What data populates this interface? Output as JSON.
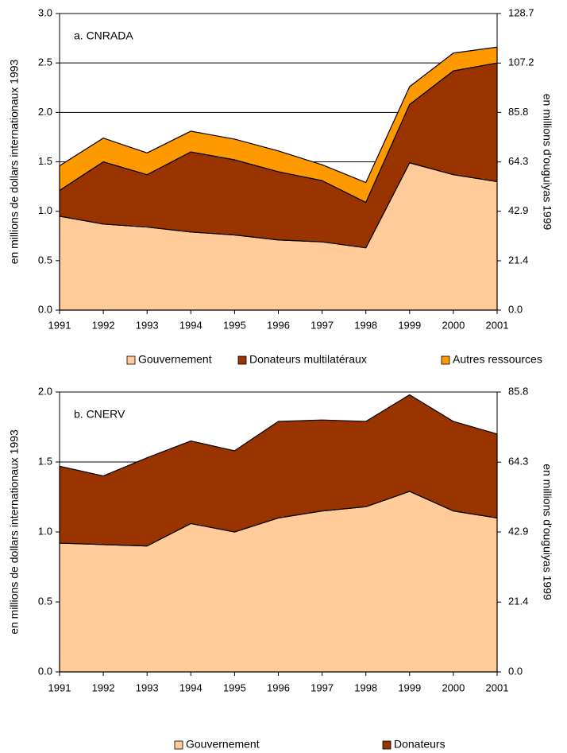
{
  "chart_data": [
    {
      "type": "stacked_area",
      "title": "a. CNRADA",
      "y_label": "en millions de dollars internationaux 1993",
      "y2_label": "en millions d'ouguiyas 1999",
      "x": [
        1991,
        1992,
        1993,
        1994,
        1995,
        1996,
        1997,
        1998,
        1999,
        2000,
        2001
      ],
      "xlim": [
        1991,
        2001
      ],
      "series": [
        {
          "name": "Gouvernement",
          "color": "#ffcc99",
          "values": [
            0.95,
            0.87,
            0.84,
            0.79,
            0.76,
            0.71,
            0.69,
            0.63,
            1.49,
            1.37,
            1.3
          ]
        },
        {
          "name": "Donateurs multilatéraux",
          "color": "#993300",
          "values": [
            0.26,
            0.63,
            0.53,
            0.81,
            0.76,
            0.69,
            0.62,
            0.46,
            0.59,
            1.05,
            1.2
          ]
        },
        {
          "name": "Autres ressources",
          "color": "#ff9900",
          "values": [
            0.25,
            0.24,
            0.22,
            0.21,
            0.21,
            0.21,
            0.16,
            0.2,
            0.18,
            0.18,
            0.16
          ]
        }
      ],
      "ylim": [
        0,
        3
      ],
      "yticks": [
        {
          "value": 0,
          "label": "0.0"
        },
        0.5,
        {
          "value": 1,
          "label": "1.0"
        },
        1.5,
        {
          "value": 2,
          "label": "2.0"
        },
        2.5,
        {
          "value": 3,
          "label": "3.0"
        }
      ],
      "y2lim": [
        0,
        128.7
      ],
      "y2ticks": [
        {
          "value": 0,
          "label": "0.0"
        },
        21.4,
        42.9,
        64.3,
        85.8,
        107.2,
        128.7
      ],
      "grid": true
    },
    {
      "type": "stacked_area",
      "title": "b. CNERV",
      "y_label": "en millions de dollars internationaux 1993",
      "y2_label": "en millions d'ouguiyas 1999",
      "x": [
        1991,
        1992,
        1993,
        1994,
        1995,
        1996,
        1997,
        1998,
        1999,
        2000,
        2001
      ],
      "xlim": [
        1991,
        2001
      ],
      "series": [
        {
          "name": "Gouvernement",
          "color": "#ffcc99",
          "values": [
            0.92,
            0.91,
            0.9,
            1.06,
            1.0,
            1.1,
            1.15,
            1.18,
            1.29,
            1.15,
            1.1
          ]
        },
        {
          "name": "Donateurs",
          "color": "#993300",
          "values": [
            0.55,
            0.49,
            0.63,
            0.59,
            0.58,
            0.69,
            0.65,
            0.61,
            0.69,
            0.64,
            0.6
          ]
        }
      ],
      "ylim": [
        0,
        2
      ],
      "yticks": [
        {
          "value": 0,
          "label": "0.0"
        },
        0.5,
        {
          "value": 1,
          "label": "1.0"
        },
        1.5,
        {
          "value": 2,
          "label": "2.0"
        }
      ],
      "y2lim": [
        0,
        85.8
      ],
      "y2ticks": [
        {
          "value": 0,
          "label": "0.0"
        },
        21.4,
        42.9,
        64.3,
        85.8
      ],
      "grid": true
    }
  ]
}
